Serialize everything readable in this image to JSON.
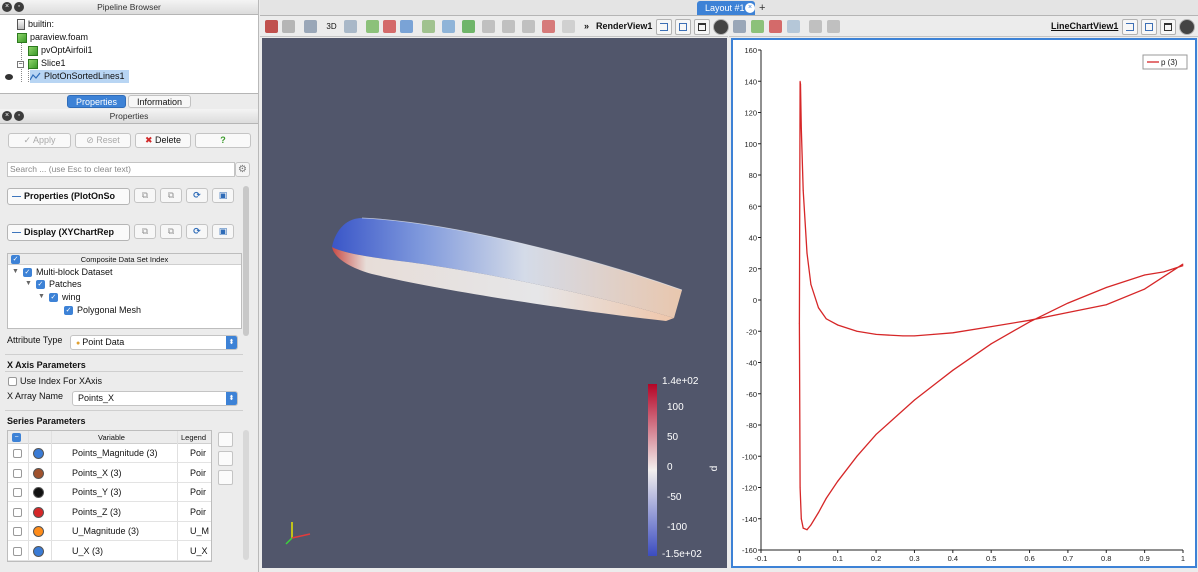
{
  "pipeline": {
    "title": "Pipeline Browser",
    "items": [
      "builtin:",
      "paraview.foam",
      "pvOptAirfoil1",
      "Slice1",
      "PlotOnSortedLines1"
    ]
  },
  "tabs": [
    "Properties",
    "Information"
  ],
  "properties": {
    "title": "Properties",
    "apply": "Apply",
    "reset": "Reset",
    "delete": "Delete",
    "help": "?",
    "search_placeholder": "Search ... (use Esc to clear text)",
    "section_props": "Properties (PlotOnSo",
    "section_display": "Display (XYChartRep",
    "composite_header": "Composite Data Set Index",
    "composite_tree": [
      "Multi-block Dataset",
      "Patches",
      "wing",
      "Polygonal Mesh"
    ],
    "attribute_type_label": "Attribute Type",
    "attribute_type_value": "Point Data",
    "x_axis_header": "X Axis Parameters",
    "use_index_label": "Use Index For XAxis",
    "x_array_label": "X Array Name",
    "x_array_value": "Points_X",
    "series_header": "Series Parameters",
    "series_col_variable": "Variable",
    "series_col_legend": "Legend",
    "series": [
      {
        "name": "Points_Magnitude (3)",
        "legend": "Poir",
        "color": "#3a7bd5"
      },
      {
        "name": "Points_X (3)",
        "legend": "Poir",
        "color": "#a0522d"
      },
      {
        "name": "Points_Y (3)",
        "legend": "Poir",
        "color": "#111111"
      },
      {
        "name": "Points_Z (3)",
        "legend": "Poir",
        "color": "#d62728"
      },
      {
        "name": "U_Magnitude (3)",
        "legend": "U_M",
        "color": "#ff8c1a"
      },
      {
        "name": "U_X (3)",
        "legend": "U_X",
        "color": "#3a7bd5"
      }
    ]
  },
  "layout": {
    "tab": "Layout #1",
    "plus": "+"
  },
  "render_view": {
    "toolbar_3d": "3D",
    "title": "RenderView1",
    "more": "»",
    "background": "#51566b",
    "colorbar": {
      "title": "p",
      "labels": [
        "1.4e+02",
        "100",
        "50",
        "0",
        "-50",
        "-100",
        "-1.5e+02"
      ],
      "colors": [
        "#b40426",
        "#f7f7f7",
        "#3b4cc0"
      ]
    }
  },
  "chart_view": {
    "title": "LineChartView1",
    "chart_data": {
      "type": "line",
      "xlim": [
        -0.1,
        1
      ],
      "ylim": [
        -160,
        160
      ],
      "x_ticks": [
        -0.1,
        0,
        0.1,
        0.2,
        0.3,
        0.4,
        0.5,
        0.6,
        0.7,
        0.8,
        0.9,
        1
      ],
      "x_tick_labels": [
        "-0.1",
        "0",
        "0.1",
        "0.2",
        "0.3",
        "0.4",
        "0.5",
        "0.6",
        "0.7",
        "0.8",
        "0.9",
        "1"
      ],
      "y_ticks": [
        -160,
        -140,
        -120,
        -100,
        -80,
        -60,
        -40,
        -20,
        0,
        20,
        40,
        60,
        80,
        100,
        120,
        140,
        160
      ],
      "grid": false,
      "legend_position": "top-right",
      "series": [
        {
          "name": "p (3)",
          "color": "#d62728",
          "x": [
            1.0,
            0.95,
            0.9,
            0.8,
            0.7,
            0.6,
            0.5,
            0.4,
            0.35,
            0.3,
            0.27,
            0.2,
            0.15,
            0.1,
            0.07,
            0.05,
            0.03,
            0.02,
            0.01,
            0.005,
            0.003,
            0.002,
            0.0,
            0.002,
            0.005,
            0.01,
            0.02,
            0.03,
            0.05,
            0.07,
            0.1,
            0.15,
            0.2,
            0.3,
            0.4,
            0.5,
            0.6,
            0.7,
            0.8,
            0.9,
            0.95,
            1.0
          ],
          "y": [
            23,
            15,
            7,
            -3,
            -8,
            -13,
            -17,
            -21,
            -22,
            -23,
            -23,
            -22,
            -20,
            -16,
            -12,
            -5,
            10,
            30,
            70,
            110,
            138,
            140,
            -15,
            -120,
            -140,
            -146,
            -147,
            -144,
            -136,
            -127,
            -116,
            -100,
            -86,
            -64,
            -45,
            -28,
            -14,
            -2,
            8,
            16,
            18,
            22
          ]
        }
      ]
    }
  }
}
